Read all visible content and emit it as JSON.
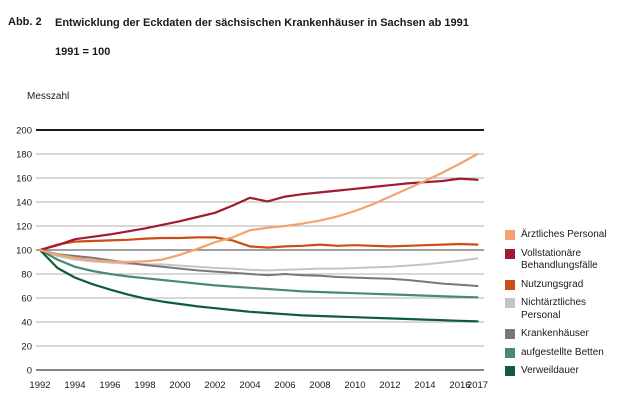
{
  "figure": {
    "label": "Abb. 2",
    "title_line1": "Entwicklung der Eckdaten der sächsischen Krankenhäuser in Sachsen ab 1991",
    "title_line2": "1991 = 100",
    "y_axis_title": "Messzahl"
  },
  "chart_data": {
    "type": "line",
    "title": "Entwicklung der Eckdaten der sächsischen Krankenhäuser in Sachsen ab 1991 (1991 = 100)",
    "ylabel": "Messzahl",
    "xlabel": "",
    "grid": true,
    "legend_position": "right",
    "ylim": [
      0,
      200
    ],
    "y_ticks": [
      0,
      20,
      40,
      60,
      80,
      100,
      120,
      140,
      160,
      180,
      200
    ],
    "x": [
      1992,
      1993,
      1994,
      1995,
      1996,
      1997,
      1998,
      1999,
      2000,
      2001,
      2002,
      2003,
      2004,
      2005,
      2006,
      2007,
      2008,
      2009,
      2010,
      2011,
      2012,
      2013,
      2014,
      2015,
      2016,
      2017
    ],
    "x_tick_labels": [
      "1992",
      "1994",
      "1996",
      "1998",
      "2000",
      "2002",
      "2004",
      "2006",
      "2008",
      "2010",
      "2012",
      "2014",
      "2016",
      "2017"
    ],
    "series": [
      {
        "name": "Ärztliches Personal",
        "color": "#F2A36E",
        "values": [
          100,
          96,
          93.5,
          91.5,
          90.5,
          90,
          90.5,
          92,
          96,
          101,
          106.5,
          110.5,
          116.5,
          118.5,
          120,
          122,
          124.5,
          128,
          132.5,
          138,
          144.5,
          151,
          157.5,
          164.5,
          172,
          180
        ]
      },
      {
        "name": "Vollstationäre Behandlungsfälle",
        "color": "#A01B32",
        "values": [
          100,
          104,
          109,
          111,
          113,
          115.5,
          118,
          121,
          124,
          127.5,
          131,
          137,
          143.5,
          140.5,
          144.5,
          146.5,
          148,
          149.5,
          151,
          152.5,
          154,
          155.5,
          156.5,
          157.5,
          159.5,
          158.5
        ]
      },
      {
        "name": "Nutzungsgrad",
        "color": "#CC4E14",
        "values": [
          100,
          104.5,
          107,
          107.5,
          108,
          108.5,
          109.5,
          110,
          110,
          110.5,
          110.5,
          108,
          103,
          102,
          103,
          103.5,
          104.5,
          103.5,
          104,
          103.5,
          103,
          103.5,
          104,
          104.5,
          105,
          104.5
        ]
      },
      {
        "name": "Nichtärztliches Personal",
        "color": "#C4C4C4",
        "values": [
          100,
          95,
          92,
          90.5,
          89.5,
          88.5,
          88,
          88,
          87,
          86,
          85,
          84.5,
          83.5,
          83,
          83.5,
          84,
          84.5,
          84.5,
          85,
          85.5,
          86,
          87,
          88,
          89.5,
          91,
          93
        ]
      },
      {
        "name": "Krankenhäuser",
        "color": "#787878",
        "values": [
          100,
          96.5,
          95,
          93.5,
          91.5,
          89.5,
          87.5,
          86,
          84.5,
          83,
          82,
          81,
          80,
          79,
          80,
          79,
          78.5,
          77.5,
          77,
          76.5,
          76,
          75,
          73.5,
          72,
          71,
          70
        ]
      },
      {
        "name": "aufgestellte Betten",
        "color": "#4A8A70",
        "values": [
          100,
          92,
          86,
          82.5,
          80,
          78,
          76.5,
          75,
          73.5,
          72,
          70.5,
          69.5,
          68.5,
          67.5,
          66.5,
          65.5,
          65,
          64.5,
          64,
          63.5,
          63,
          62.5,
          62,
          61.5,
          61,
          60.5
        ]
      },
      {
        "name": "Verweildauer",
        "color": "#0F5C3C",
        "values": [
          100,
          85,
          77,
          71.5,
          67,
          63,
          59.5,
          57,
          55,
          53,
          51.5,
          50,
          48.5,
          47.5,
          46.5,
          45.5,
          45,
          44.5,
          44,
          43.5,
          43,
          42.5,
          42,
          41.5,
          41,
          40.5
        ]
      }
    ]
  },
  "colors": {
    "text": "#1a1a1a",
    "grid": "#b0b0b0",
    "grid_top": "#1a1a1a",
    "grid_bottom": "#3a3a3a",
    "grid_hundred": "#808080"
  }
}
